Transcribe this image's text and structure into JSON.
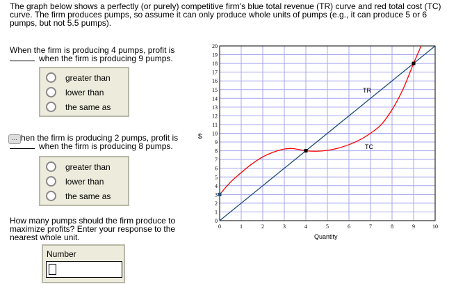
{
  "intro": "The graph below shows a perfectly (or purely) competitive firm's blue total revenue (TR) curve and red total cost (TC) curve. The firm produces pumps, so assume it can only produce whole units of pumps (e.g., it can produce 5 or 6 pumps, but not 5.5 pumps).",
  "q1": {
    "line1": "When the firm is producing 4 pumps, profit is",
    "line2": "when the firm is producing 9 pumps.",
    "options": [
      "greater than",
      "lower than",
      "the same as"
    ]
  },
  "q2": {
    "line1": "hen the firm is producing 2 pumps, profit is",
    "line2": "when the firm is producing 8 pumps.",
    "options": [
      "greater than",
      "lower than",
      "the same as"
    ]
  },
  "q3": {
    "text": "How many pumps should the firm produce to maximize profits? Enter your response to the nearest whole unit.",
    "input_label": "Number",
    "value": ""
  },
  "chart_data": {
    "type": "line",
    "xlabel": "Quantity",
    "ylabel": "$",
    "xlim": [
      0,
      10
    ],
    "ylim": [
      0,
      20
    ],
    "xticks": [
      "0",
      "1",
      "2",
      "3",
      "4",
      "5",
      "6",
      "7",
      "8",
      "9",
      "10"
    ],
    "yticks": [
      "0",
      "1",
      "2",
      "3",
      "4",
      "5",
      "6",
      "7",
      "8",
      "9",
      "10",
      "11",
      "12",
      "13",
      "14",
      "15",
      "16",
      "17",
      "18",
      "19",
      "20"
    ],
    "grid": true,
    "series": [
      {
        "name": "TR",
        "color": "#1f4e79",
        "x": [
          0,
          10
        ],
        "y": [
          0,
          20
        ]
      },
      {
        "name": "TC",
        "color": "#ff0000",
        "x": [
          0,
          0.5,
          1,
          1.5,
          2,
          2.5,
          3,
          3.4,
          4,
          4.5,
          5,
          5.5,
          6,
          6.5,
          7,
          7.5,
          8,
          8.5,
          9,
          9.35
        ],
        "y": [
          3,
          4.4,
          5.5,
          6.5,
          7.3,
          7.85,
          8.2,
          8.25,
          8,
          7.95,
          8.05,
          8.3,
          8.7,
          9.25,
          10,
          11,
          12.7,
          15,
          18,
          20
        ]
      }
    ],
    "points": [
      {
        "x": 0,
        "y": 3
      },
      {
        "x": 4,
        "y": 8
      },
      {
        "x": 9,
        "y": 18
      }
    ]
  }
}
